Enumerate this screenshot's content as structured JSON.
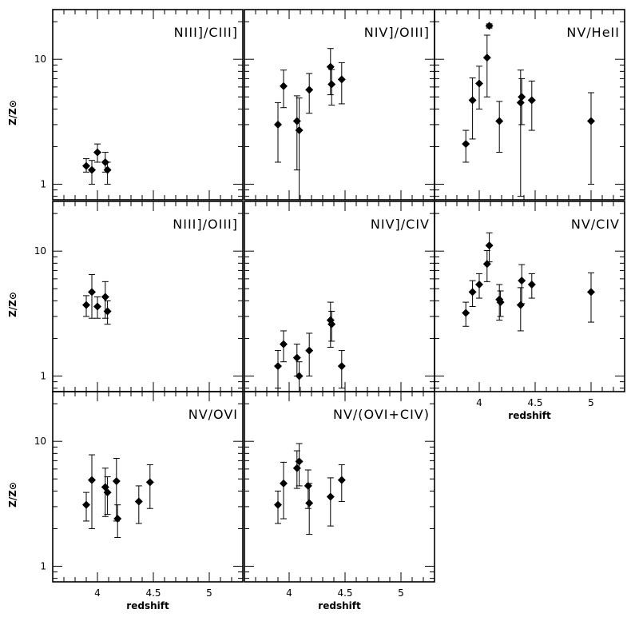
{
  "chart_data": [
    {
      "type": "scatter",
      "title": "NIII]/CIII]",
      "xlabel": "",
      "ylabel": "Z/Z⊙",
      "xlim": [
        3.6,
        5.3
      ],
      "ylim": [
        0.75,
        25
      ],
      "yscale": "log",
      "xticks": [],
      "yticks": [
        "1",
        "10"
      ],
      "points": [
        {
          "x": 3.9,
          "y": 1.4,
          "lo": 1.25,
          "hi": 1.6
        },
        {
          "x": 3.95,
          "y": 1.3,
          "lo": 1.0,
          "hi": 1.55
        },
        {
          "x": 4.0,
          "y": 1.8,
          "lo": 1.5,
          "hi": 2.1
        },
        {
          "x": 4.07,
          "y": 1.5,
          "lo": 1.25,
          "hi": 1.8
        },
        {
          "x": 4.09,
          "y": 1.3,
          "lo": 1.0,
          "hi": 1.5
        }
      ]
    },
    {
      "type": "scatter",
      "title": "NIV]/OIII]",
      "xlabel": "",
      "ylabel": "",
      "xlim": [
        3.6,
        5.3
      ],
      "ylim": [
        0.75,
        25
      ],
      "yscale": "log",
      "xticks": [],
      "yticks": [],
      "points": [
        {
          "x": 3.9,
          "y": 3.0,
          "lo": 1.5,
          "hi": 4.5
        },
        {
          "x": 3.95,
          "y": 6.1,
          "lo": 4.1,
          "hi": 8.2
        },
        {
          "x": 4.07,
          "y": 3.2,
          "lo": 1.3,
          "hi": 5.1
        },
        {
          "x": 4.09,
          "y": 2.7,
          "lo": 0.5,
          "hi": 4.9
        },
        {
          "x": 4.18,
          "y": 5.7,
          "lo": 3.7,
          "hi": 7.7
        },
        {
          "x": 4.37,
          "y": 8.7,
          "lo": 5.2,
          "hi": 12.2
        },
        {
          "x": 4.38,
          "y": 6.3,
          "lo": 4.3,
          "hi": 8.3
        },
        {
          "x": 4.47,
          "y": 6.9,
          "lo": 4.4,
          "hi": 9.4
        }
      ]
    },
    {
      "type": "scatter",
      "title": "NV/HeII",
      "xlabel": "",
      "ylabel": "",
      "xlim": [
        3.6,
        5.3
      ],
      "ylim": [
        0.75,
        25
      ],
      "yscale": "log",
      "xticks": [],
      "yticks": [],
      "points": [
        {
          "x": 3.88,
          "y": 2.1,
          "lo": 1.5,
          "hi": 2.7
        },
        {
          "x": 3.94,
          "y": 4.7,
          "lo": 2.3,
          "hi": 7.1
        },
        {
          "x": 4.0,
          "y": 6.4,
          "lo": 4.0,
          "hi": 8.8
        },
        {
          "x": 4.07,
          "y": 10.3,
          "lo": 5.0,
          "hi": 15.6
        },
        {
          "x": 4.09,
          "y": 18.5,
          "lo": 17.8,
          "hi": 19.2
        },
        {
          "x": 4.18,
          "y": 3.2,
          "lo": 1.8,
          "hi": 4.6
        },
        {
          "x": 4.37,
          "y": 4.5,
          "lo": 0.8,
          "hi": 8.2
        },
        {
          "x": 4.38,
          "y": 5.0,
          "lo": 3.0,
          "hi": 7.0
        },
        {
          "x": 4.47,
          "y": 4.7,
          "lo": 2.7,
          "hi": 6.7
        },
        {
          "x": 5.0,
          "y": 3.2,
          "lo": 1.0,
          "hi": 5.4
        }
      ]
    },
    {
      "type": "scatter",
      "title": "NIII]/OIII]",
      "xlabel": "",
      "ylabel": "Z/Z⊙",
      "xlim": [
        3.6,
        5.3
      ],
      "ylim": [
        0.75,
        25
      ],
      "yscale": "log",
      "xticks": [],
      "yticks": [
        "1",
        "10"
      ],
      "points": [
        {
          "x": 3.9,
          "y": 3.7,
          "lo": 3.0,
          "hi": 4.4
        },
        {
          "x": 3.95,
          "y": 4.7,
          "lo": 2.9,
          "hi": 6.5
        },
        {
          "x": 4.0,
          "y": 3.6,
          "lo": 2.9,
          "hi": 4.3
        },
        {
          "x": 4.07,
          "y": 4.3,
          "lo": 2.9,
          "hi": 5.7
        },
        {
          "x": 4.09,
          "y": 3.3,
          "lo": 2.6,
          "hi": 4.0
        }
      ]
    },
    {
      "type": "scatter",
      "title": "NIV]/CIV",
      "xlabel": "",
      "ylabel": "",
      "xlim": [
        3.6,
        5.3
      ],
      "ylim": [
        0.75,
        25
      ],
      "yscale": "log",
      "xticks": [],
      "yticks": [],
      "points": [
        {
          "x": 3.9,
          "y": 1.2,
          "lo": 0.8,
          "hi": 1.6
        },
        {
          "x": 3.95,
          "y": 1.8,
          "lo": 1.3,
          "hi": 2.3
        },
        {
          "x": 4.07,
          "y": 1.4,
          "lo": 1.0,
          "hi": 1.8
        },
        {
          "x": 4.09,
          "y": 1.0,
          "lo": 0.7,
          "hi": 1.3
        },
        {
          "x": 4.18,
          "y": 1.6,
          "lo": 1.0,
          "hi": 2.2
        },
        {
          "x": 4.37,
          "y": 2.8,
          "lo": 1.7,
          "hi": 3.9
        },
        {
          "x": 4.38,
          "y": 2.6,
          "lo": 1.9,
          "hi": 3.3
        },
        {
          "x": 4.47,
          "y": 1.2,
          "lo": 0.8,
          "hi": 1.6
        }
      ]
    },
    {
      "type": "scatter",
      "title": "NV/CIV",
      "xlabel": "redshift",
      "ylabel": "",
      "xlim": [
        3.6,
        5.3
      ],
      "ylim": [
        0.75,
        25
      ],
      "yscale": "log",
      "xticks": [
        "4",
        "4.5",
        "5"
      ],
      "yticks": [],
      "points": [
        {
          "x": 3.88,
          "y": 3.2,
          "lo": 2.5,
          "hi": 3.9
        },
        {
          "x": 3.94,
          "y": 4.7,
          "lo": 3.6,
          "hi": 5.8
        },
        {
          "x": 4.0,
          "y": 5.4,
          "lo": 4.2,
          "hi": 6.6
        },
        {
          "x": 4.07,
          "y": 7.9,
          "lo": 5.7,
          "hi": 10.1
        },
        {
          "x": 4.09,
          "y": 11.1,
          "lo": 8.2,
          "hi": 14.0
        },
        {
          "x": 4.18,
          "y": 4.1,
          "lo": 2.8,
          "hi": 5.4
        },
        {
          "x": 4.19,
          "y": 3.9,
          "lo": 3.0,
          "hi": 4.8
        },
        {
          "x": 4.37,
          "y": 3.7,
          "lo": 2.3,
          "hi": 5.1
        },
        {
          "x": 4.38,
          "y": 5.8,
          "lo": 3.8,
          "hi": 7.8
        },
        {
          "x": 4.47,
          "y": 5.4,
          "lo": 4.2,
          "hi": 6.6
        },
        {
          "x": 5.0,
          "y": 4.7,
          "lo": 2.7,
          "hi": 6.7
        }
      ]
    },
    {
      "type": "scatter",
      "title": "NV/OVI",
      "xlabel": "redshift",
      "ylabel": "Z/Z⊙",
      "xlim": [
        3.6,
        5.3
      ],
      "ylim": [
        0.75,
        25
      ],
      "yscale": "log",
      "xticks": [
        "4",
        "4.5",
        "5"
      ],
      "yticks": [
        "1",
        "10"
      ],
      "points": [
        {
          "x": 3.9,
          "y": 3.1,
          "lo": 2.3,
          "hi": 3.9
        },
        {
          "x": 3.95,
          "y": 4.9,
          "lo": 2.0,
          "hi": 7.8
        },
        {
          "x": 4.07,
          "y": 4.3,
          "lo": 2.5,
          "hi": 6.1
        },
        {
          "x": 4.09,
          "y": 3.9,
          "lo": 2.6,
          "hi": 5.2
        },
        {
          "x": 4.17,
          "y": 4.8,
          "lo": 2.3,
          "hi": 7.3
        },
        {
          "x": 4.18,
          "y": 2.4,
          "lo": 1.7,
          "hi": 3.1
        },
        {
          "x": 4.37,
          "y": 3.3,
          "lo": 2.2,
          "hi": 4.4
        },
        {
          "x": 4.47,
          "y": 4.7,
          "lo": 2.9,
          "hi": 6.5
        }
      ]
    },
    {
      "type": "scatter",
      "title": "NV/(OVI+CIV)",
      "xlabel": "redshift",
      "ylabel": "",
      "xlim": [
        3.6,
        5.3
      ],
      "ylim": [
        0.75,
        25
      ],
      "yscale": "log",
      "xticks": [
        "4",
        "4.5",
        "5"
      ],
      "yticks": [],
      "points": [
        {
          "x": 3.9,
          "y": 3.1,
          "lo": 2.2,
          "hi": 4.0
        },
        {
          "x": 3.95,
          "y": 4.6,
          "lo": 2.4,
          "hi": 6.8
        },
        {
          "x": 4.07,
          "y": 6.1,
          "lo": 4.2,
          "hi": 8.4
        },
        {
          "x": 4.09,
          "y": 6.9,
          "lo": 4.4,
          "hi": 9.6
        },
        {
          "x": 4.17,
          "y": 4.4,
          "lo": 2.9,
          "hi": 5.9
        },
        {
          "x": 4.18,
          "y": 3.2,
          "lo": 1.8,
          "hi": 4.6
        },
        {
          "x": 4.37,
          "y": 3.6,
          "lo": 2.1,
          "hi": 5.1
        },
        {
          "x": 4.47,
          "y": 4.9,
          "lo": 3.3,
          "hi": 6.5
        }
      ]
    }
  ]
}
